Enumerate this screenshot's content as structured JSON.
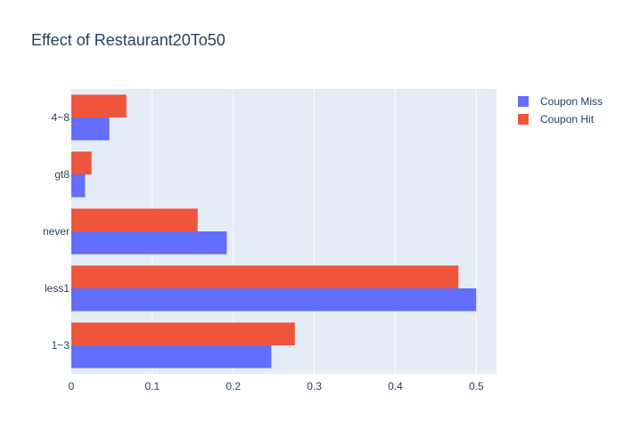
{
  "chart_data": {
    "type": "bar",
    "orientation": "horizontal",
    "title": "Effect of Restaurant20To50",
    "xlabel": "",
    "ylabel": "",
    "categories": [
      "1~3",
      "less1",
      "never",
      "gt8",
      "4~8"
    ],
    "xlim": [
      0,
      0.525
    ],
    "xticks": [
      0,
      0.1,
      0.2,
      0.3,
      0.4,
      0.5
    ],
    "xtick_labels": [
      "0",
      "0.1",
      "0.2",
      "0.3",
      "0.4",
      "0.5"
    ],
    "grid": true,
    "legend_position": "top-right",
    "series": [
      {
        "name": "Coupon Miss",
        "color": "#636efa",
        "values": [
          0.247,
          0.5,
          0.192,
          0.017,
          0.047
        ]
      },
      {
        "name": "Coupon Hit",
        "color": "#ef553b",
        "values": [
          0.276,
          0.478,
          0.156,
          0.025,
          0.068
        ]
      }
    ],
    "plot_background": "#e5ecf6",
    "gridline_color": "#ffffff"
  }
}
